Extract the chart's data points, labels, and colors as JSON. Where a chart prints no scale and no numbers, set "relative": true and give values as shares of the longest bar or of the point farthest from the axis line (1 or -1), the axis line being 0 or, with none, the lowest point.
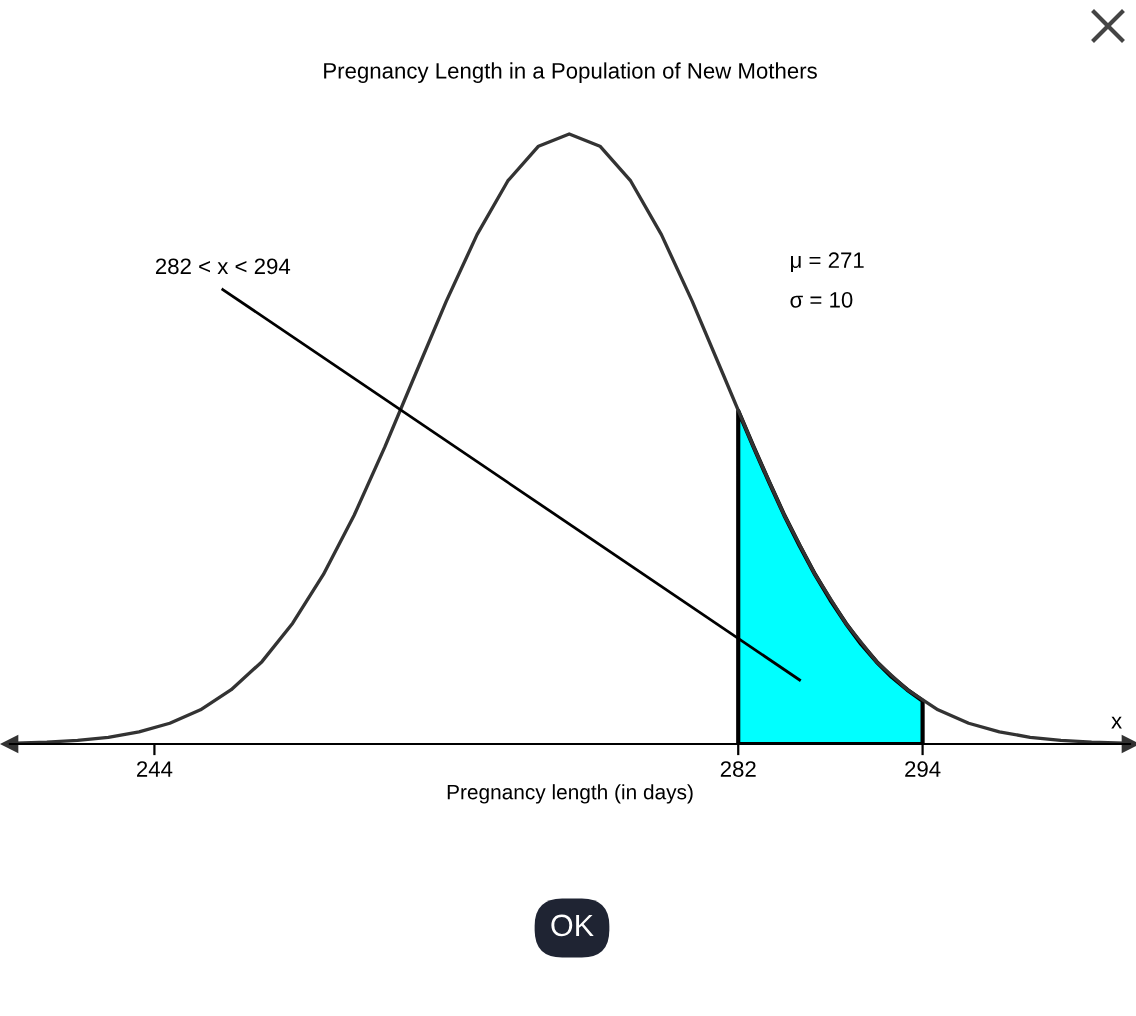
{
  "chart_data": {
    "type": "line",
    "title": "Pregnancy Length in a Population of New Mothers",
    "xlabel": "Pregnancy length (in days)",
    "relative": true,
    "xlim": [
      234.6,
      307.5
    ],
    "xticks": [
      244,
      282,
      294
    ],
    "series": [
      {
        "color": "#333333",
        "x": [
          235,
          237,
          239,
          241,
          243,
          245,
          247,
          249,
          251,
          253,
          255,
          257,
          259,
          261,
          263,
          265,
          267,
          269,
          271,
          273,
          275,
          277,
          279,
          281,
          283,
          285,
          287,
          289,
          291,
          293,
          295,
          297,
          299,
          301,
          303,
          305,
          307
        ],
        "values": [
          0.0015,
          0.0031,
          0.006,
          0.011,
          0.02,
          0.034,
          0.056,
          0.089,
          0.135,
          0.198,
          0.278,
          0.375,
          0.487,
          0.607,
          0.726,
          0.835,
          0.923,
          0.98,
          1,
          0.98,
          0.923,
          0.835,
          0.726,
          0.607,
          0.487,
          0.375,
          0.278,
          0.198,
          0.135,
          0.089,
          0.056,
          0.034,
          0.02,
          0.011,
          0.006,
          0.0031,
          0.0015
        ]
      },
      {
        "type": "area",
        "color": "#00ffff",
        "x": [
          282,
          283,
          284,
          285,
          286,
          287,
          288,
          289,
          290,
          291,
          292,
          293,
          294
        ],
        "values": [
          0.546,
          0.487,
          0.43,
          0.375,
          0.325,
          0.278,
          0.236,
          0.198,
          0.164,
          0.135,
          0.11,
          0.089,
          0.071
        ]
      }
    ],
    "annotations": [
      "282 < x < 294",
      "μ = 271",
      "σ = 10",
      "x",
      "OK"
    ]
  }
}
